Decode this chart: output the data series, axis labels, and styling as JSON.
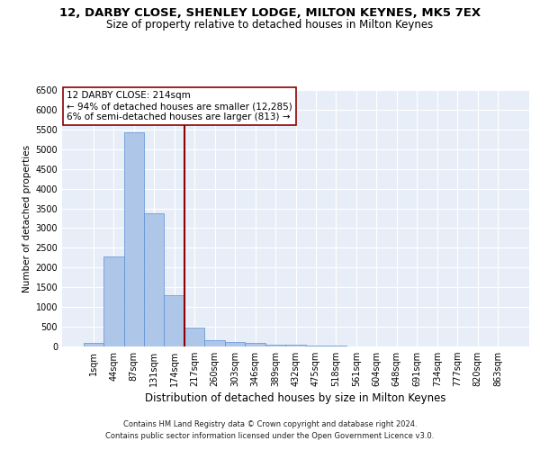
{
  "title1": "12, DARBY CLOSE, SHENLEY LODGE, MILTON KEYNES, MK5 7EX",
  "title2": "Size of property relative to detached houses in Milton Keynes",
  "xlabel": "Distribution of detached houses by size in Milton Keynes",
  "ylabel": "Number of detached properties",
  "footnote1": "Contains HM Land Registry data © Crown copyright and database right 2024.",
  "footnote2": "Contains public sector information licensed under the Open Government Licence v3.0.",
  "bar_labels": [
    "1sqm",
    "44sqm",
    "87sqm",
    "131sqm",
    "174sqm",
    "217sqm",
    "260sqm",
    "303sqm",
    "346sqm",
    "389sqm",
    "432sqm",
    "475sqm",
    "518sqm",
    "561sqm",
    "604sqm",
    "648sqm",
    "691sqm",
    "734sqm",
    "777sqm",
    "820sqm",
    "863sqm"
  ],
  "bar_values": [
    80,
    2280,
    5430,
    3380,
    1310,
    480,
    160,
    110,
    80,
    45,
    35,
    30,
    20,
    10,
    5,
    3,
    2,
    1,
    1,
    0,
    0
  ],
  "bar_color": "#aec6e8",
  "bar_edge_color": "#5b8fd4",
  "vline_index": 5,
  "vline_color": "#8b0000",
  "annotation_line1": "12 DARBY CLOSE: 214sqm",
  "annotation_line2": "← 94% of detached houses are smaller (12,285)",
  "annotation_line3": "6% of semi-detached houses are larger (813) →",
  "annotation_box_edgecolor": "#8b0000",
  "ylim": [
    0,
    6500
  ],
  "yticks": [
    0,
    500,
    1000,
    1500,
    2000,
    2500,
    3000,
    3500,
    4000,
    4500,
    5000,
    5500,
    6000,
    6500
  ],
  "bg_color": "#e8eef8",
  "grid_color": "white",
  "title1_fontsize": 9.5,
  "title2_fontsize": 8.5,
  "xlabel_fontsize": 8.5,
  "ylabel_fontsize": 7.5,
  "tick_fontsize": 7,
  "annotation_fontsize": 7.5,
  "footnote_fontsize": 6
}
